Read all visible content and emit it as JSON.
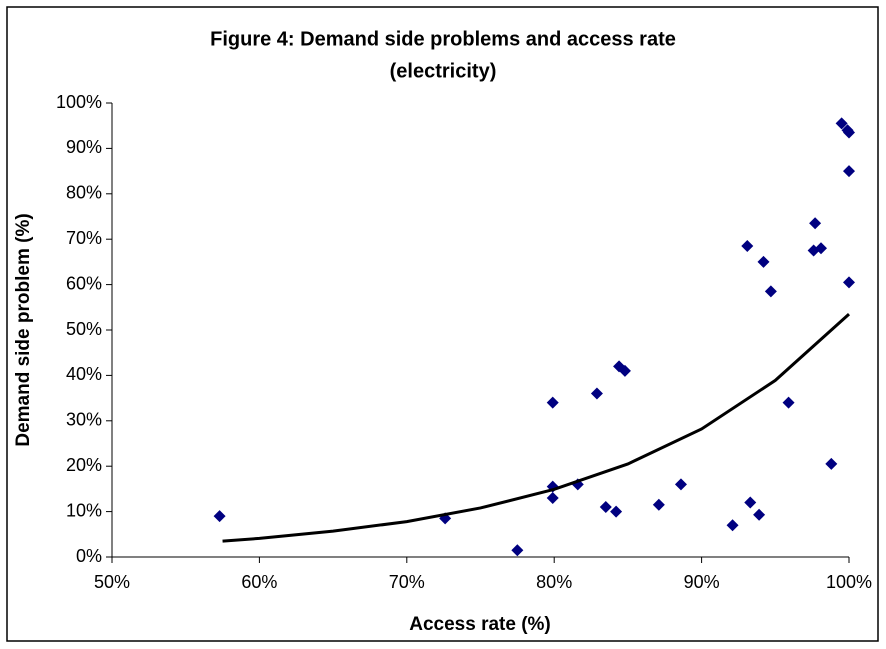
{
  "chart_data": {
    "type": "scatter",
    "title": [
      "Figure 4: Demand side problems and access rate",
      "(electricity)"
    ],
    "x_label": "Access rate (%)",
    "y_label": "Demand side problem (%)",
    "color": "#000080",
    "x": [
      57.3,
      72.6,
      77.5,
      79.9,
      79.9,
      79.9,
      81.6,
      82.9,
      83.5,
      84.2,
      84.4,
      84.8,
      87.1,
      88.6,
      92.1,
      93.1,
      93.3,
      93.9,
      94.2,
      94.7,
      95.9,
      97.6,
      97.7,
      98.1,
      98.8,
      99.5,
      99.9,
      100,
      100,
      100
    ],
    "values": [
      9,
      8.5,
      1.5,
      34,
      15.5,
      13,
      16,
      36,
      11,
      10,
      42,
      41,
      11.5,
      16,
      7,
      68.5,
      12,
      9.3,
      65,
      58.5,
      34,
      67.5,
      73.5,
      68,
      20.5,
      95.5,
      94,
      93.5,
      85,
      60.5
    ],
    "trendline": {
      "color": "#000000",
      "x": [
        57.5,
        60,
        65,
        70,
        75,
        80,
        85,
        90,
        95,
        100
      ],
      "values": [
        3.5,
        4.1,
        5.7,
        7.8,
        10.8,
        14.9,
        20.5,
        28.2,
        38.9,
        53.5
      ]
    },
    "xlim": [
      50,
      100
    ],
    "xticks": [
      {
        "value": 50,
        "label": "50%"
      },
      {
        "value": 60,
        "label": "60%"
      },
      {
        "value": 70,
        "label": "70%"
      },
      {
        "value": 80,
        "label": "80%"
      },
      {
        "value": 90,
        "label": "90%"
      },
      {
        "value": 100,
        "label": "100%"
      }
    ],
    "ylim": [
      0,
      100
    ],
    "yticks": [
      {
        "value": 0,
        "label": "0%"
      },
      {
        "value": 10,
        "label": "10%"
      },
      {
        "value": 20,
        "label": "20%"
      },
      {
        "value": 30,
        "label": "30%"
      },
      {
        "value": 40,
        "label": "40%"
      },
      {
        "value": 50,
        "label": "50%"
      },
      {
        "value": 60,
        "label": "60%"
      },
      {
        "value": 70,
        "label": "70%"
      },
      {
        "value": 80,
        "label": "80%"
      },
      {
        "value": 90,
        "label": "90%"
      },
      {
        "value": 100,
        "label": "100%"
      }
    ],
    "grid": false
  }
}
